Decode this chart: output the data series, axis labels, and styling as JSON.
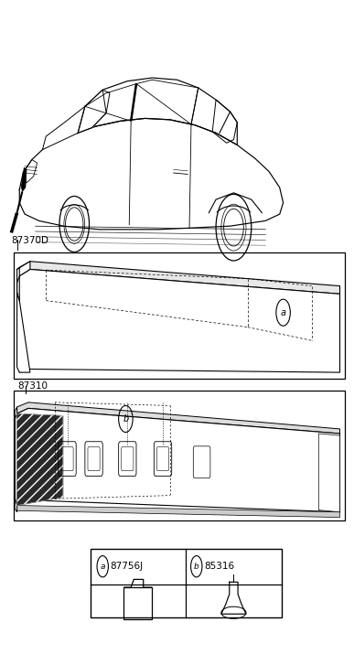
{
  "background_color": "#ffffff",
  "label_87370D": "87370D",
  "label_87310": "87310",
  "part_a_code": "87756J",
  "part_b_code": "85316",
  "circle_a": "a",
  "circle_b": "b",
  "fig_width": 3.87,
  "fig_height": 7.27,
  "dpi": 100,
  "lc": "#000000",
  "dark_fill": "#1a1a1a",
  "gray_fill": "#888888"
}
